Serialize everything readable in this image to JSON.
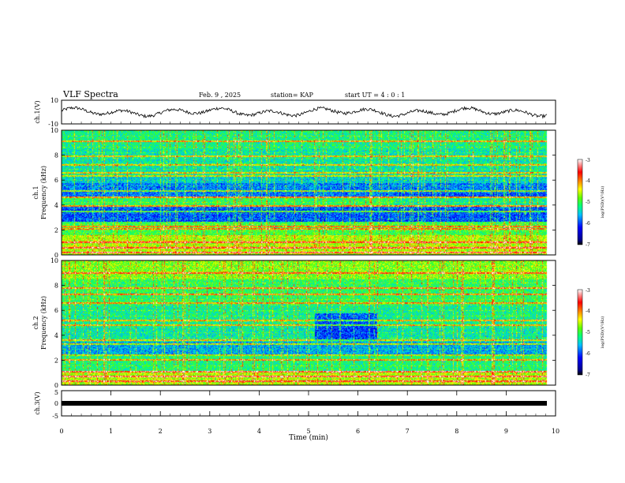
{
  "header": {
    "title": "VLF Spectra",
    "date": "Feb. 9 , 2025",
    "station": "station= KAP",
    "start_ut": "start  UT =   4 : 0  : 1"
  },
  "chart_data": [
    {
      "type": "line",
      "name": "ch1-waveform",
      "ylabel": "ch.1(V)",
      "ylim": [
        -10,
        10
      ],
      "yticks": [
        "10",
        "-10"
      ],
      "xlim": [
        0,
        10
      ]
    },
    {
      "type": "heatmap",
      "name": "ch1-spectrogram",
      "ylabel": "ch.1",
      "ylabel2": "Frequency (kHz)",
      "ylim": [
        0,
        10
      ],
      "yticks": [
        "0",
        "2",
        "4",
        "6",
        "8",
        "10"
      ],
      "xlim": [
        0,
        10
      ],
      "colorbar": {
        "label": "log(PSD)(V²/Hz)",
        "range": [
          -7,
          -3
        ],
        "ticks": [
          "-3",
          "-4",
          "-5",
          "-6",
          "-7"
        ]
      }
    },
    {
      "type": "heatmap",
      "name": "ch2-spectrogram",
      "ylabel": "ch.2",
      "ylabel2": "Frequency (kHz)",
      "ylim": [
        0,
        10
      ],
      "yticks": [
        "0",
        "2",
        "4",
        "6",
        "8",
        "10"
      ],
      "xlim": [
        0,
        10
      ],
      "colorbar": {
        "label": "log(PSD)(V²/Hz)",
        "range": [
          -7,
          -3
        ],
        "ticks": [
          "-3",
          "-4",
          "-5",
          "-6",
          "-7"
        ]
      }
    },
    {
      "type": "line",
      "name": "ch3-waveform",
      "ylabel": "ch.3(V)",
      "ylim": [
        -5,
        5
      ],
      "yticks": [
        "5",
        "0",
        "-5"
      ],
      "xlim": [
        0,
        10
      ],
      "xlabel": "Time (min)",
      "xticks": [
        "0",
        "1",
        "2",
        "3",
        "4",
        "5",
        "6",
        "7",
        "8",
        "9",
        "10"
      ]
    }
  ],
  "colors": {
    "jet": [
      "#000080",
      "#0000ff",
      "#00a0ff",
      "#00ffff",
      "#40ff80",
      "#c0ff00",
      "#ffff00",
      "#ff8000",
      "#ff0000",
      "#ffffff"
    ]
  }
}
